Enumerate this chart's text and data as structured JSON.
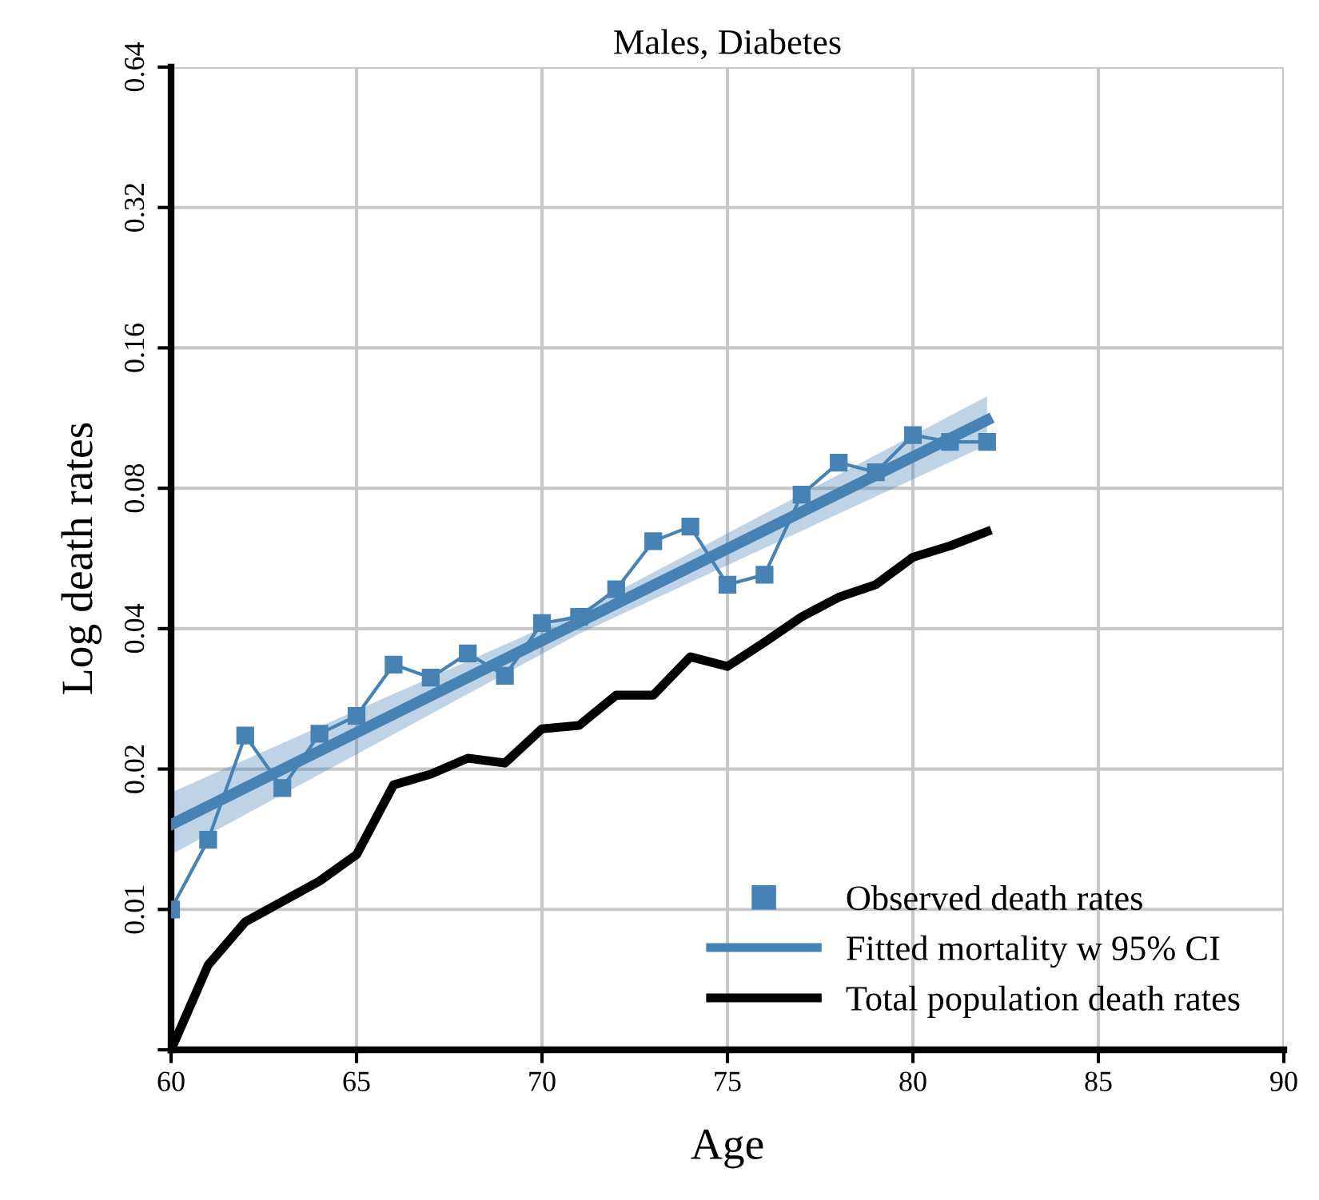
{
  "chart_data": {
    "type": "line",
    "title": "Males, Diabetes",
    "xlabel": "Age",
    "ylabel": "Log death rates",
    "log": "y",
    "xlim": [
      60,
      90
    ],
    "xticks": [
      60,
      65,
      70,
      75,
      80,
      85,
      90
    ],
    "ylim": [
      0.005,
      0.64
    ],
    "yticks": [
      {
        "value": 0.005,
        "label": null
      },
      0.01,
      0.02,
      0.04,
      0.08,
      0.16,
      0.32,
      0.64
    ],
    "grid": true,
    "legend": "bottom right",
    "x": [
      60,
      61,
      62,
      63,
      64,
      65,
      66,
      67,
      68,
      69,
      70,
      71,
      72,
      73,
      74,
      75,
      76,
      77,
      78,
      79,
      80,
      81,
      82
    ],
    "series": [
      {
        "name": "Observed death rates",
        "color": "#4682b4",
        "marker": "square",
        "line_style": "solid",
        "values": [
          0.01,
          0.0141,
          0.0236,
          0.0182,
          0.0238,
          0.026,
          0.0335,
          0.0314,
          0.0354,
          0.0317,
          0.0411,
          0.0424,
          0.0486,
          0.0616,
          0.0662,
          0.0497,
          0.0522,
          0.0775,
          0.0908,
          0.0866,
          0.104,
          0.1006,
          0.1006
        ]
      },
      {
        "name": "Fitted mortality w 95% CI",
        "color": "#4682b4",
        "marker": "none",
        "line_style": "solid",
        "x": [
          60,
          71,
          82
        ],
        "values": [
          0.0152,
          0.0413,
          0.112
        ],
        "lower": [
          0.0131,
          0.039,
          0.099
        ],
        "upper": [
          0.0178,
          0.0435,
          0.126
        ]
      },
      {
        "name": "Total population death rates",
        "color": "#000000",
        "marker": "none",
        "line_style": "solid",
        "values": [
          0.005,
          0.0076,
          0.0094,
          0.0104,
          0.0115,
          0.0131,
          0.0185,
          0.0195,
          0.0211,
          0.0206,
          0.0244,
          0.0248,
          0.0288,
          0.0288,
          0.0348,
          0.0332,
          0.0374,
          0.0424,
          0.0467,
          0.0497,
          0.0569,
          0.0602,
          0.0646
        ]
      }
    ]
  }
}
